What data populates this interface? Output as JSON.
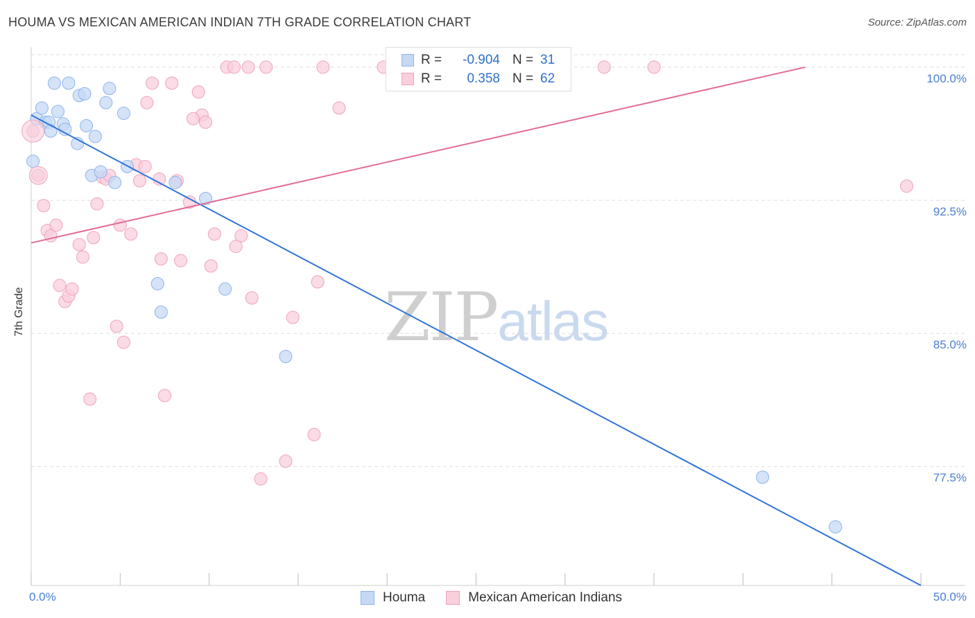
{
  "header": {
    "title": "HOUMA VS MEXICAN AMERICAN INDIAN 7TH GRADE CORRELATION CHART",
    "source": "Source: ZipAtlas.com"
  },
  "watermark": {
    "zip": "ZIP",
    "atlas": "atlas"
  },
  "legend": {
    "rows": [
      {
        "r_label": "R =",
        "r_value": "-0.904",
        "n_label": "N =",
        "n_value": "31"
      },
      {
        "r_label": "R =",
        "r_value": "0.358",
        "n_label": "N =",
        "n_value": "62"
      }
    ]
  },
  "colors": {
    "blue_fill": "#c5d9f5",
    "blue_stroke": "#8fb3e8",
    "blue_line": "#2f74d8",
    "pink_fill": "#f9cfdc",
    "pink_stroke": "#eea3bb",
    "pink_line": "#e26b97",
    "tick_label": "#4a7fd0",
    "grid": "#dddddd"
  },
  "chart_data": {
    "type": "scatter",
    "title": "HOUMA VS MEXICAN AMERICAN INDIAN 7TH GRADE CORRELATION CHART",
    "xlabel": "",
    "ylabel": "7th Grade",
    "xlim": [
      0,
      50
    ],
    "ylim": [
      70.8,
      100.7
    ],
    "x_tick_labels": [
      "0.0%",
      "50.0%"
    ],
    "y_ticks": [
      77.5,
      85.0,
      92.5,
      100.0
    ],
    "y_tick_labels": [
      "77.5%",
      "85.0%",
      "92.5%",
      "100.0%"
    ],
    "grid": "horizontal dashed",
    "legend_position": "bottom",
    "series": [
      {
        "name": "Houma",
        "color": "#8fb3e8",
        "trend": {
          "x": [
            0.0,
            50.0
          ],
          "y": [
            97.3,
            70.8
          ]
        },
        "points": [
          [
            0.1,
            94.7
          ],
          [
            0.3,
            97.1
          ],
          [
            0.6,
            97.7
          ],
          [
            0.8,
            96.9
          ],
          [
            1.0,
            96.9
          ],
          [
            1.1,
            96.4
          ],
          [
            1.3,
            99.1
          ],
          [
            1.5,
            97.5
          ],
          [
            1.8,
            96.8
          ],
          [
            1.9,
            96.5
          ],
          [
            2.1,
            99.1
          ],
          [
            2.6,
            95.7
          ],
          [
            2.7,
            98.4
          ],
          [
            3.0,
            98.5
          ],
          [
            3.1,
            96.7
          ],
          [
            3.6,
            96.1
          ],
          [
            3.4,
            93.9
          ],
          [
            3.9,
            94.1
          ],
          [
            4.2,
            98.0
          ],
          [
            4.4,
            98.8
          ],
          [
            4.7,
            93.5
          ],
          [
            5.2,
            97.4
          ],
          [
            5.4,
            94.4
          ],
          [
            7.1,
            87.8
          ],
          [
            7.3,
            86.2
          ],
          [
            8.1,
            93.5
          ],
          [
            9.8,
            92.6
          ],
          [
            10.9,
            87.5
          ],
          [
            14.3,
            83.7
          ],
          [
            41.1,
            76.9
          ],
          [
            45.2,
            74.1
          ]
        ]
      },
      {
        "name": "Mexican American Indians",
        "color": "#eea3bb",
        "trend": {
          "x": [
            0.0,
            43.5
          ],
          "y": [
            90.1,
            100.0
          ]
        },
        "points": [
          [
            0.1,
            96.4
          ],
          [
            0.4,
            93.9
          ],
          [
            0.7,
            92.2
          ],
          [
            0.9,
            90.8
          ],
          [
            1.1,
            90.5
          ],
          [
            1.4,
            91.1
          ],
          [
            1.6,
            87.7
          ],
          [
            1.9,
            86.8
          ],
          [
            2.1,
            87.1
          ],
          [
            2.3,
            87.5
          ],
          [
            2.7,
            90.0
          ],
          [
            2.9,
            89.3
          ],
          [
            3.3,
            81.3
          ],
          [
            3.5,
            90.4
          ],
          [
            3.7,
            92.3
          ],
          [
            4.0,
            93.8
          ],
          [
            4.2,
            93.7
          ],
          [
            4.4,
            93.9
          ],
          [
            4.8,
            85.4
          ],
          [
            5.0,
            91.1
          ],
          [
            5.2,
            84.5
          ],
          [
            5.6,
            90.6
          ],
          [
            5.9,
            94.5
          ],
          [
            6.1,
            93.6
          ],
          [
            6.4,
            94.4
          ],
          [
            6.5,
            98.0
          ],
          [
            6.8,
            99.1
          ],
          [
            7.2,
            93.7
          ],
          [
            7.3,
            89.2
          ],
          [
            7.5,
            81.5
          ],
          [
            7.9,
            99.1
          ],
          [
            8.2,
            93.6
          ],
          [
            8.4,
            89.1
          ],
          [
            8.9,
            92.4
          ],
          [
            9.4,
            98.6
          ],
          [
            9.6,
            97.3
          ],
          [
            9.1,
            97.1
          ],
          [
            9.8,
            96.9
          ],
          [
            10.1,
            88.8
          ],
          [
            10.3,
            90.6
          ],
          [
            11.0,
            100.0
          ],
          [
            11.4,
            100.0
          ],
          [
            11.5,
            89.9
          ],
          [
            11.8,
            90.5
          ],
          [
            12.2,
            100.0
          ],
          [
            12.4,
            87.0
          ],
          [
            12.9,
            76.8
          ],
          [
            13.2,
            100.0
          ],
          [
            14.3,
            77.8
          ],
          [
            14.7,
            85.9
          ],
          [
            15.9,
            79.3
          ],
          [
            16.1,
            87.9
          ],
          [
            16.4,
            100.0
          ],
          [
            17.3,
            97.7
          ],
          [
            19.8,
            100.0
          ],
          [
            24.3,
            100.0
          ],
          [
            24.7,
            100.0
          ],
          [
            28.4,
            100.0
          ],
          [
            29.2,
            100.0
          ],
          [
            32.2,
            100.0
          ],
          [
            35.0,
            100.0
          ],
          [
            49.2,
            93.3
          ]
        ]
      }
    ]
  },
  "bottom_legend": {
    "items": [
      {
        "label": "Houma"
      },
      {
        "label": "Mexican American Indians"
      }
    ]
  }
}
